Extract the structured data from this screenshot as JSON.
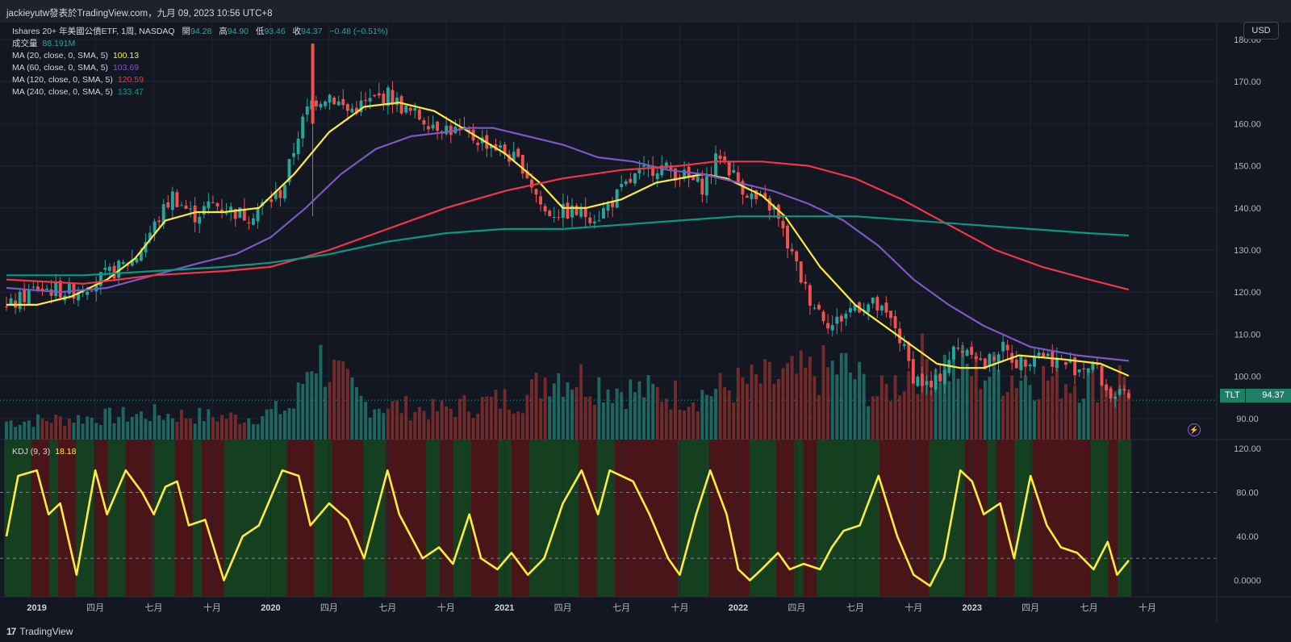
{
  "header": {
    "publisher_line": "jackieyutw發表於TradingView.com，九月 09, 2023 10:56 UTC+8"
  },
  "instrument": {
    "name": "Ishares 20+ 年美國公債ETF, 1周, NASDAQ",
    "open_label": "開",
    "open": "94.28",
    "high_label": "高",
    "high": "94.90",
    "low_label": "低",
    "low": "93.46",
    "close_label": "收",
    "close": "94.37",
    "change": "−0.48 (−0.51%)"
  },
  "volume": {
    "label": "成交量",
    "value": "88.191M"
  },
  "indicators": [
    {
      "label": "MA (20, close, 0, SMA, 5)",
      "value": "100.13",
      "color": "#ffeb3b"
    },
    {
      "label": "MA (60, close, 0, SMA, 5)",
      "value": "103.69",
      "color": "#7e57c2"
    },
    {
      "label": "MA (120, close, 0, SMA, 5)",
      "value": "120.59",
      "color": "#f23645"
    },
    {
      "label": "MA (240, close, 0, SMA, 5)",
      "value": "133.47",
      "color": "#089981"
    }
  ],
  "kdj": {
    "label": "KDJ (9, 3)",
    "value": "18.18",
    "color": "#ffeb3b"
  },
  "currency_button": "USD",
  "price_tag": {
    "ticker": "TLT",
    "price": "94.37"
  },
  "footer": {
    "logo_glyph": "17",
    "brand": "TradingView"
  },
  "colors": {
    "up": "#26a69a",
    "down": "#ef5350",
    "bg": "#131722",
    "kdj_up_band": "#15401f",
    "kdj_down_band": "#4a1519"
  },
  "chart_data": [
    {
      "type": "candlestick",
      "title": "Ishares 20+ 年美國公債ETF, 1周, NASDAQ",
      "ylim": [
        85,
        184
      ],
      "y_ticks": [
        "180.00",
        "170.00",
        "160.00",
        "150.00",
        "140.00",
        "130.00",
        "120.00",
        "110.00",
        "100.00",
        "90.00"
      ],
      "x_ticks": [
        "2019",
        "四月",
        "七月",
        "十月",
        "2020",
        "四月",
        "七月",
        "十月",
        "2021",
        "四月",
        "七月",
        "十月",
        "2022",
        "四月",
        "七月",
        "十月",
        "2023",
        "四月",
        "七月",
        "十月"
      ],
      "x_tick_dates": [
        2019.0,
        2019.25,
        2019.5,
        2019.75,
        2020.0,
        2020.25,
        2020.5,
        2020.75,
        2021.0,
        2021.25,
        2021.5,
        2021.75,
        2022.0,
        2022.25,
        2022.5,
        2022.75,
        2023.0,
        2023.25,
        2023.5,
        2023.75
      ],
      "grid": true,
      "close_path": [
        [
          2018.87,
          116
        ],
        [
          2019.0,
          121
        ],
        [
          2019.15,
          120
        ],
        [
          2019.3,
          124
        ],
        [
          2019.42,
          128
        ],
        [
          2019.58,
          143
        ],
        [
          2019.67,
          138
        ],
        [
          2019.75,
          141
        ],
        [
          2019.9,
          138
        ],
        [
          2020.05,
          144
        ],
        [
          2020.12,
          158
        ],
        [
          2020.17,
          165
        ],
        [
          2020.25,
          167
        ],
        [
          2020.33,
          163
        ],
        [
          2020.5,
          167
        ],
        [
          2020.58,
          163
        ],
        [
          2020.7,
          160
        ],
        [
          2020.8,
          158
        ],
        [
          2020.95,
          155
        ],
        [
          2021.08,
          150
        ],
        [
          2021.17,
          139
        ],
        [
          2021.3,
          139
        ],
        [
          2021.4,
          138
        ],
        [
          2021.55,
          147
        ],
        [
          2021.65,
          150
        ],
        [
          2021.75,
          148
        ],
        [
          2021.85,
          145
        ],
        [
          2021.92,
          153
        ],
        [
          2022.0,
          146
        ],
        [
          2022.07,
          142
        ],
        [
          2022.15,
          140
        ],
        [
          2022.22,
          130
        ],
        [
          2022.3,
          119
        ],
        [
          2022.4,
          112
        ],
        [
          2022.5,
          117
        ],
        [
          2022.58,
          117
        ],
        [
          2022.67,
          112
        ],
        [
          2022.75,
          100
        ],
        [
          2022.83,
          97
        ],
        [
          2022.92,
          106
        ],
        [
          2023.0,
          107
        ],
        [
          2023.05,
          102
        ],
        [
          2023.12,
          107
        ],
        [
          2023.2,
          103
        ],
        [
          2023.28,
          106
        ],
        [
          2023.35,
          104
        ],
        [
          2023.45,
          102
        ],
        [
          2023.52,
          103
        ],
        [
          2023.58,
          96
        ],
        [
          2023.67,
          94.37
        ]
      ],
      "series": [
        {
          "name": "MA (20, close, 0, SMA, 5)",
          "color": "#ffeb3b",
          "points": [
            [
              2018.87,
              117
            ],
            [
              2019.0,
              117
            ],
            [
              2019.15,
              119
            ],
            [
              2019.3,
              123
            ],
            [
              2019.42,
              128
            ],
            [
              2019.55,
              137
            ],
            [
              2019.68,
              139
            ],
            [
              2019.8,
              139
            ],
            [
              2019.95,
              140
            ],
            [
              2020.1,
              148
            ],
            [
              2020.25,
              158
            ],
            [
              2020.4,
              164
            ],
            [
              2020.55,
              165
            ],
            [
              2020.7,
              163
            ],
            [
              2020.85,
              158
            ],
            [
              2021.0,
              153
            ],
            [
              2021.15,
              146
            ],
            [
              2021.25,
              140
            ],
            [
              2021.35,
              140
            ],
            [
              2021.5,
              142
            ],
            [
              2021.65,
              146
            ],
            [
              2021.85,
              148
            ],
            [
              2021.95,
              147
            ],
            [
              2022.1,
              143
            ],
            [
              2022.2,
              138
            ],
            [
              2022.35,
              126
            ],
            [
              2022.5,
              117
            ],
            [
              2022.6,
              113
            ],
            [
              2022.75,
              107
            ],
            [
              2022.85,
              103
            ],
            [
              2022.95,
              102
            ],
            [
              2023.05,
              102
            ],
            [
              2023.2,
              105
            ],
            [
              2023.4,
              104
            ],
            [
              2023.55,
              103
            ],
            [
              2023.67,
              100.13
            ]
          ]
        },
        {
          "name": "MA (60, close, 0, SMA, 5)",
          "color": "#7e57c2",
          "points": [
            [
              2018.87,
              121
            ],
            [
              2019.1,
              120
            ],
            [
              2019.3,
              121
            ],
            [
              2019.5,
              124
            ],
            [
              2019.7,
              127
            ],
            [
              2019.85,
              129
            ],
            [
              2020.0,
              133
            ],
            [
              2020.15,
              140
            ],
            [
              2020.3,
              148
            ],
            [
              2020.45,
              154
            ],
            [
              2020.6,
              157
            ],
            [
              2020.75,
              158
            ],
            [
              2020.85,
              159
            ],
            [
              2020.95,
              159
            ],
            [
              2021.1,
              157
            ],
            [
              2021.25,
              155
            ],
            [
              2021.4,
              152
            ],
            [
              2021.55,
              151
            ],
            [
              2021.7,
              149
            ],
            [
              2021.85,
              148
            ],
            [
              2022.0,
              146
            ],
            [
              2022.15,
              144
            ],
            [
              2022.3,
              141
            ],
            [
              2022.45,
              137
            ],
            [
              2022.6,
              131
            ],
            [
              2022.75,
              123
            ],
            [
              2022.9,
              117
            ],
            [
              2023.05,
              112
            ],
            [
              2023.25,
              107
            ],
            [
              2023.45,
              105
            ],
            [
              2023.67,
              103.69
            ]
          ]
        },
        {
          "name": "MA (120, close, 0, SMA, 5)",
          "color": "#f23645",
          "points": [
            [
              2018.87,
              123
            ],
            [
              2019.2,
              122
            ],
            [
              2019.5,
              124
            ],
            [
              2019.8,
              125
            ],
            [
              2020.0,
              126
            ],
            [
              2020.25,
              130
            ],
            [
              2020.5,
              135
            ],
            [
              2020.75,
              140
            ],
            [
              2021.0,
              144
            ],
            [
              2021.25,
              147
            ],
            [
              2021.5,
              149
            ],
            [
              2021.75,
              150
            ],
            [
              2021.9,
              151
            ],
            [
              2022.1,
              151
            ],
            [
              2022.3,
              150
            ],
            [
              2022.5,
              147
            ],
            [
              2022.7,
              142
            ],
            [
              2022.9,
              136
            ],
            [
              2023.1,
              130
            ],
            [
              2023.3,
              126
            ],
            [
              2023.5,
              123
            ],
            [
              2023.67,
              120.59
            ]
          ]
        },
        {
          "name": "MA (240, close, 0, SMA, 5)",
          "color": "#089981",
          "points": [
            [
              2018.87,
              124
            ],
            [
              2019.2,
              124
            ],
            [
              2019.5,
              125
            ],
            [
              2019.8,
              126
            ],
            [
              2020.0,
              127
            ],
            [
              2020.25,
              129
            ],
            [
              2020.5,
              132
            ],
            [
              2020.75,
              134
            ],
            [
              2021.0,
              135
            ],
            [
              2021.25,
              135
            ],
            [
              2021.5,
              136
            ],
            [
              2021.75,
              137
            ],
            [
              2022.0,
              138
            ],
            [
              2022.25,
              138
            ],
            [
              2022.5,
              138
            ],
            [
              2022.75,
              137
            ],
            [
              2023.0,
              136
            ],
            [
              2023.25,
              135
            ],
            [
              2023.5,
              134
            ],
            [
              2023.67,
              133.47
            ]
          ]
        }
      ]
    },
    {
      "type": "bar",
      "title": "成交量",
      "value_unit": "M",
      "bars_note": "weekly volume, up weeks teal, down weeks red",
      "sample": [
        [
          2018.9,
          25
        ],
        [
          2019.2,
          30
        ],
        [
          2019.5,
          35
        ],
        [
          2019.9,
          30
        ],
        [
          2020.1,
          45
        ],
        [
          2020.18,
          120
        ],
        [
          2020.4,
          50
        ],
        [
          2020.7,
          40
        ],
        [
          2021.1,
          60
        ],
        [
          2021.2,
          95
        ],
        [
          2021.5,
          70
        ],
        [
          2021.8,
          60
        ],
        [
          2022.0,
          75
        ],
        [
          2022.3,
          90
        ],
        [
          2022.45,
          100
        ],
        [
          2022.6,
          60
        ],
        [
          2022.8,
          110
        ],
        [
          2023.0,
          95
        ],
        [
          2023.3,
          85
        ],
        [
          2023.5,
          80
        ],
        [
          2023.67,
          88.191
        ]
      ]
    },
    {
      "type": "line",
      "title": "KDJ (9, 3)",
      "ylim": [
        -15,
        128
      ],
      "y_ticks": [
        "120.00",
        "80.00",
        "40.00",
        "0.0000"
      ],
      "reference_lines": [
        80,
        20
      ],
      "series": [
        {
          "name": "KDJ (9, 3)",
          "color": "#ffeb3b",
          "points": [
            [
              2018.87,
              40
            ],
            [
              2018.92,
              95
            ],
            [
              2019.0,
              100
            ],
            [
              2019.05,
              60
            ],
            [
              2019.1,
              70
            ],
            [
              2019.17,
              5
            ],
            [
              2019.25,
              100
            ],
            [
              2019.3,
              60
            ],
            [
              2019.38,
              100
            ],
            [
              2019.45,
              80
            ],
            [
              2019.5,
              60
            ],
            [
              2019.55,
              85
            ],
            [
              2019.6,
              90
            ],
            [
              2019.65,
              50
            ],
            [
              2019.72,
              55
            ],
            [
              2019.8,
              0
            ],
            [
              2019.88,
              40
            ],
            [
              2019.95,
              50
            ],
            [
              2020.05,
              100
            ],
            [
              2020.12,
              95
            ],
            [
              2020.17,
              50
            ],
            [
              2020.25,
              70
            ],
            [
              2020.33,
              55
            ],
            [
              2020.4,
              20
            ],
            [
              2020.5,
              100
            ],
            [
              2020.55,
              60
            ],
            [
              2020.65,
              20
            ],
            [
              2020.72,
              30
            ],
            [
              2020.78,
              15
            ],
            [
              2020.85,
              60
            ],
            [
              2020.9,
              20
            ],
            [
              2020.97,
              10
            ],
            [
              2021.03,
              25
            ],
            [
              2021.1,
              5
            ],
            [
              2021.17,
              20
            ],
            [
              2021.25,
              70
            ],
            [
              2021.33,
              100
            ],
            [
              2021.4,
              60
            ],
            [
              2021.45,
              100
            ],
            [
              2021.55,
              90
            ],
            [
              2021.62,
              60
            ],
            [
              2021.7,
              20
            ],
            [
              2021.75,
              5
            ],
            [
              2021.82,
              60
            ],
            [
              2021.88,
              100
            ],
            [
              2021.95,
              60
            ],
            [
              2022.0,
              10
            ],
            [
              2022.05,
              0
            ],
            [
              2022.1,
              10
            ],
            [
              2022.17,
              25
            ],
            [
              2022.22,
              10
            ],
            [
              2022.28,
              15
            ],
            [
              2022.35,
              10
            ],
            [
              2022.4,
              30
            ],
            [
              2022.45,
              45
            ],
            [
              2022.52,
              50
            ],
            [
              2022.6,
              95
            ],
            [
              2022.68,
              40
            ],
            [
              2022.75,
              5
            ],
            [
              2022.82,
              -5
            ],
            [
              2022.88,
              20
            ],
            [
              2022.95,
              100
            ],
            [
              2023.0,
              90
            ],
            [
              2023.05,
              60
            ],
            [
              2023.12,
              70
            ],
            [
              2023.18,
              20
            ],
            [
              2023.25,
              95
            ],
            [
              2023.32,
              50
            ],
            [
              2023.38,
              30
            ],
            [
              2023.45,
              25
            ],
            [
              2023.52,
              10
            ],
            [
              2023.58,
              35
            ],
            [
              2023.62,
              5
            ],
            [
              2023.67,
              18.18
            ]
          ]
        }
      ]
    }
  ]
}
